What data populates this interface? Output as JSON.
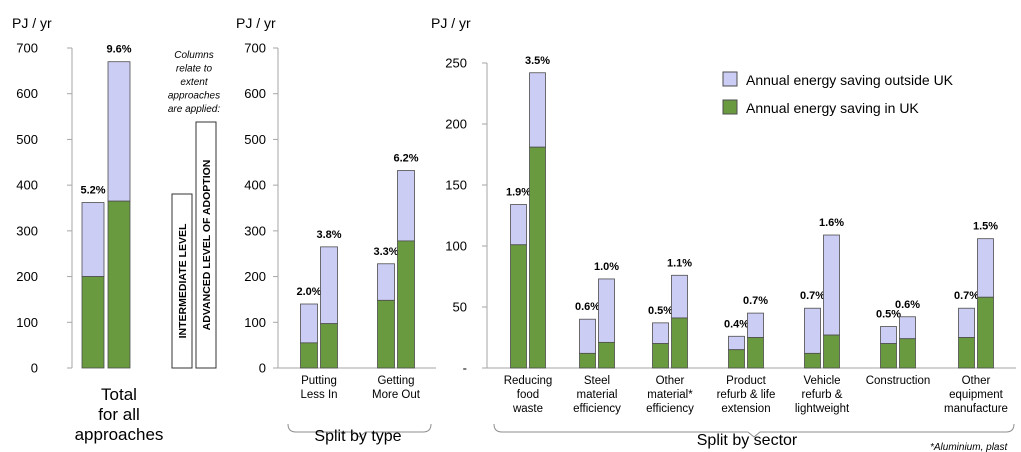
{
  "colors": {
    "in_uk": "#6a9a3f",
    "outside_uk": "#cccdf4",
    "bar_outline": "#4d4d4d",
    "axis": "#a6a6a6"
  },
  "legend": {
    "outside": "Annual energy saving outside UK",
    "inside": "Annual energy saving in UK"
  },
  "footnote": "*Aluminium, plast",
  "side_note": {
    "lines": [
      "Columns",
      "relate to",
      "extent",
      "approaches",
      "are applied:"
    ],
    "intermediate": "INTERMEDIATE LEVEL",
    "advanced": "ADVANCED LEVEL OF ADOPTION"
  },
  "chart_data": [
    {
      "type": "bar",
      "unit_label": "PJ / yr",
      "ylim": [
        0,
        700
      ],
      "yticks": [
        "0",
        "100",
        "200",
        "300",
        "400",
        "500",
        "600",
        "700"
      ],
      "title_lines": [
        "Total",
        "for all",
        "approaches"
      ],
      "categories": [
        ""
      ],
      "bars": [
        {
          "cat": 0,
          "level": "intermediate",
          "in_uk": 200,
          "outside_uk": 162,
          "pct": "5.2%"
        },
        {
          "cat": 0,
          "level": "advanced",
          "in_uk": 365,
          "outside_uk": 305,
          "pct": "9.6%"
        }
      ]
    },
    {
      "type": "bar",
      "unit_label": "PJ / yr",
      "ylim": [
        0,
        700
      ],
      "yticks": [
        "0",
        "100",
        "200",
        "300",
        "400",
        "500",
        "600",
        "700"
      ],
      "title": "Split by type",
      "categories": [
        [
          "Putting",
          "Less In"
        ],
        [
          "Getting",
          "More Out"
        ]
      ],
      "bars": [
        {
          "cat": 0,
          "level": "intermediate",
          "in_uk": 55,
          "outside_uk": 85,
          "pct": "2.0%"
        },
        {
          "cat": 0,
          "level": "advanced",
          "in_uk": 97,
          "outside_uk": 168,
          "pct": "3.8%"
        },
        {
          "cat": 1,
          "level": "intermediate",
          "in_uk": 148,
          "outside_uk": 80,
          "pct": "3.3%"
        },
        {
          "cat": 1,
          "level": "advanced",
          "in_uk": 278,
          "outside_uk": 154,
          "pct": "6.2%"
        }
      ]
    },
    {
      "type": "bar",
      "unit_label": "PJ / yr",
      "ylim": [
        0,
        250
      ],
      "yticks": [
        "-",
        "50",
        "100",
        "150",
        "200",
        "250"
      ],
      "title": "Split by sector",
      "categories": [
        [
          "Reducing",
          "food",
          "waste"
        ],
        [
          "Steel",
          "material",
          "efficiency"
        ],
        [
          "Other",
          "material*",
          "efficiency"
        ],
        [
          "Product",
          "refurb & life",
          "extension"
        ],
        [
          "Vehicle",
          "refurb &",
          "lightweight"
        ],
        [
          "Construction"
        ],
        [
          "Other",
          "equipment",
          "manufacture"
        ]
      ],
      "bars": [
        {
          "cat": 0,
          "level": "intermediate",
          "in_uk": 101,
          "outside_uk": 33,
          "pct": "1.9%"
        },
        {
          "cat": 0,
          "level": "advanced",
          "in_uk": 181,
          "outside_uk": 61,
          "pct": "3.5%"
        },
        {
          "cat": 1,
          "level": "intermediate",
          "in_uk": 12,
          "outside_uk": 28,
          "pct": "0.6%"
        },
        {
          "cat": 1,
          "level": "advanced",
          "in_uk": 21,
          "outside_uk": 52,
          "pct": "1.0%"
        },
        {
          "cat": 2,
          "level": "intermediate",
          "in_uk": 20,
          "outside_uk": 17,
          "pct": "0.5%"
        },
        {
          "cat": 2,
          "level": "advanced",
          "in_uk": 41,
          "outside_uk": 35,
          "pct": "1.1%"
        },
        {
          "cat": 3,
          "level": "intermediate",
          "in_uk": 15,
          "outside_uk": 11,
          "pct": "0.4%"
        },
        {
          "cat": 3,
          "level": "advanced",
          "in_uk": 25,
          "outside_uk": 20,
          "pct": "0.7%"
        },
        {
          "cat": 4,
          "level": "intermediate",
          "in_uk": 12,
          "outside_uk": 37,
          "pct": "0.7%"
        },
        {
          "cat": 4,
          "level": "advanced",
          "in_uk": 27,
          "outside_uk": 82,
          "pct": "1.6%"
        },
        {
          "cat": 5,
          "level": "intermediate",
          "in_uk": 20,
          "outside_uk": 14,
          "pct": "0.5%"
        },
        {
          "cat": 5,
          "level": "advanced",
          "in_uk": 24,
          "outside_uk": 18,
          "pct": "0.6%"
        },
        {
          "cat": 6,
          "level": "intermediate",
          "in_uk": 25,
          "outside_uk": 24,
          "pct": "0.7%"
        },
        {
          "cat": 6,
          "level": "advanced",
          "in_uk": 58,
          "outside_uk": 48,
          "pct": "1.5%"
        }
      ]
    }
  ]
}
